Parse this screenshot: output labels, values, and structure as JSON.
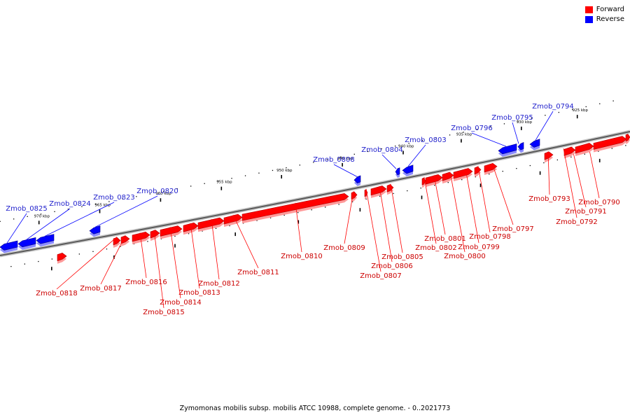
{
  "legend": {
    "forward": {
      "label": "Forward",
      "color": "#ff0000"
    },
    "reverse": {
      "label": "Reverse",
      "color": "#0000ff"
    }
  },
  "caption": "Zymomonas mobilis subsp. mobilis ATCC 10988, complete genome. - 0..2021773",
  "scale": {
    "unit": "kbp",
    "tick_labels": [
      "925 kbp",
      "930 kbp",
      "935 kbp",
      "940 kbp",
      "945 kbp",
      "950 kbp",
      "955 kbp",
      "960 kbp",
      "965 kbp",
      "970 kbp"
    ]
  },
  "genes": [
    {
      "name": "Zmob_0790",
      "strand": "forward"
    },
    {
      "name": "Zmob_0791",
      "strand": "forward"
    },
    {
      "name": "Zmob_0792",
      "strand": "forward"
    },
    {
      "name": "Zmob_0793",
      "strand": "forward"
    },
    {
      "name": "Zmob_0794",
      "strand": "reverse"
    },
    {
      "name": "Zmob_0795",
      "strand": "reverse"
    },
    {
      "name": "Zmob_0796",
      "strand": "reverse"
    },
    {
      "name": "Zmob_0797",
      "strand": "forward"
    },
    {
      "name": "Zmob_0798",
      "strand": "forward"
    },
    {
      "name": "Zmob_0799",
      "strand": "forward"
    },
    {
      "name": "Zmob_0800",
      "strand": "forward"
    },
    {
      "name": "Zmob_0801",
      "strand": "forward"
    },
    {
      "name": "Zmob_0802",
      "strand": "forward"
    },
    {
      "name": "Zmob_0803",
      "strand": "reverse"
    },
    {
      "name": "Zmob_0804",
      "strand": "reverse"
    },
    {
      "name": "Zmob_0805",
      "strand": "forward"
    },
    {
      "name": "Zmob_0806",
      "strand": "forward"
    },
    {
      "name": "Zmob_0807",
      "strand": "forward"
    },
    {
      "name": "Zmob_0808",
      "strand": "reverse"
    },
    {
      "name": "Zmob_0809",
      "strand": "forward"
    },
    {
      "name": "Zmob_0810",
      "strand": "forward"
    },
    {
      "name": "Zmob_0811",
      "strand": "forward"
    },
    {
      "name": "Zmob_0812",
      "strand": "forward"
    },
    {
      "name": "Zmob_0813",
      "strand": "forward"
    },
    {
      "name": "Zmob_0814",
      "strand": "forward"
    },
    {
      "name": "Zmob_0815",
      "strand": "forward"
    },
    {
      "name": "Zmob_0816",
      "strand": "forward"
    },
    {
      "name": "Zmob_0817",
      "strand": "forward"
    },
    {
      "name": "Zmob_0818",
      "strand": "forward"
    },
    {
      "name": "Zmob_0820",
      "strand": "reverse"
    },
    {
      "name": "Zmob_0823",
      "strand": "reverse"
    },
    {
      "name": "Zmob_0824",
      "strand": "reverse"
    },
    {
      "name": "Zmob_0825",
      "strand": "reverse"
    }
  ]
}
